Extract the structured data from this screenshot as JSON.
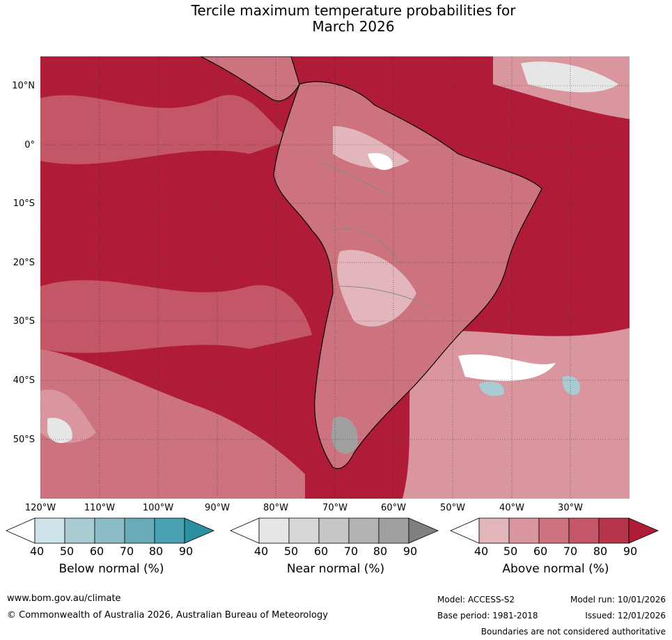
{
  "title": {
    "line1": "Tercile maximum temperature probabilities for",
    "line2": "March 2026"
  },
  "map": {
    "lat_labels": [
      "10°N",
      "0°",
      "10°S",
      "20°S",
      "30°S",
      "40°S",
      "50°S"
    ],
    "lon_labels": [
      "120°W",
      "110°W",
      "100°W",
      "90°W",
      "80°W",
      "70°W",
      "60°W",
      "50°W",
      "40°W",
      "30°W"
    ]
  },
  "legend": {
    "below": {
      "title": "Below normal (%)",
      "ticks": [
        "40",
        "50",
        "60",
        "70",
        "80",
        "90"
      ],
      "colors": [
        "#ffffff",
        "#cde3e9",
        "#a9ccd3",
        "#8bbcc5",
        "#6aabb9",
        "#47a1b1",
        "#2b8ea1"
      ]
    },
    "near": {
      "title": "Near normal (%)",
      "ticks": [
        "40",
        "50",
        "60",
        "70",
        "80",
        "90"
      ],
      "colors": [
        "#ffffff",
        "#e6e6e6",
        "#d7d7d7",
        "#c6c6c6",
        "#b3b3b3",
        "#a0a0a0",
        "#808080"
      ]
    },
    "above": {
      "title": "Above normal (%)",
      "ticks": [
        "40",
        "50",
        "60",
        "70",
        "80",
        "90"
      ],
      "colors": [
        "#ffffff",
        "#e3b6bc",
        "#d9969f",
        "#cc737f",
        "#c35767",
        "#b6354a",
        "#b01c38"
      ]
    }
  },
  "footer": {
    "url": "www.bom.gov.au/climate",
    "copyright": "© Commonwealth of Australia 2026, Australian Bureau of Meteorology",
    "model": "Model: ACCESS-S2",
    "model_run": "Model run: 10/01/2026",
    "base_period": "Base period: 1981-2018",
    "issued": "Issued: 12/01/2026",
    "disclaimer": "Boundaries are not considered authoritative"
  }
}
